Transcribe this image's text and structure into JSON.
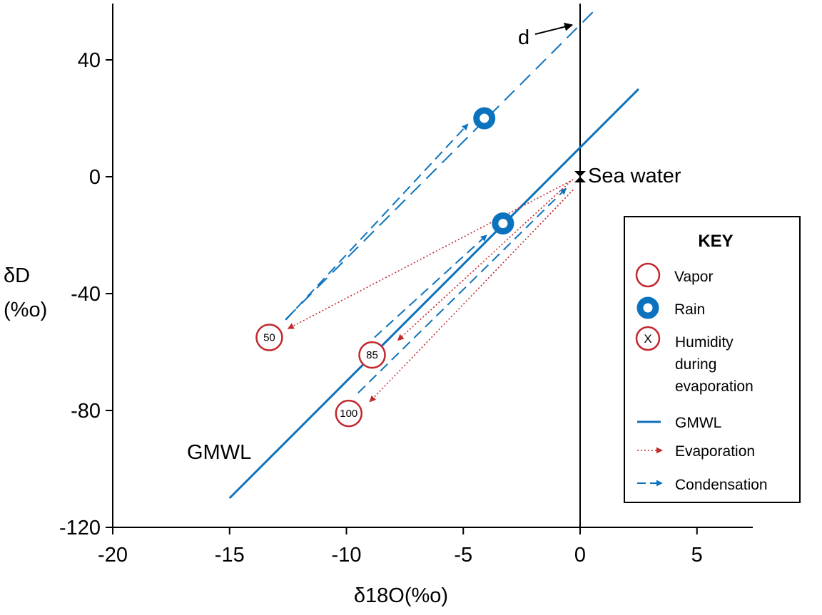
{
  "chart_data": {
    "type": "scatter",
    "title": "",
    "xlabel": "δ18O(%o)",
    "ylabel_line1": "δD",
    "ylabel_line2": "(%o)",
    "xlim": [
      -20,
      7.5
    ],
    "ylim": [
      -120,
      60
    ],
    "xticks": [
      -20,
      -15,
      -10,
      -5,
      0,
      5
    ],
    "xtick_labels": [
      "-20",
      "-15",
      "-10",
      "-5",
      "0",
      "5"
    ],
    "yticks": [
      -120,
      -80,
      -40,
      0,
      40
    ],
    "ytick_labels": [
      "-120",
      "-80",
      "-40",
      "0",
      "40"
    ],
    "gmwl": {
      "label": "GMWL",
      "slope": 8,
      "intercept": 10,
      "x_range": [
        -15,
        2.5
      ]
    },
    "d_line": {
      "label": "d",
      "slope": 8,
      "intercept": 52,
      "x_range": [
        -12.6,
        0.7
      ]
    },
    "sea_water": {
      "label": "Sea water",
      "x": 0,
      "y": 0
    },
    "vapor_points": [
      {
        "humidity": "50",
        "x": -13.3,
        "y": -55
      },
      {
        "humidity": "85",
        "x": -8.9,
        "y": -61
      },
      {
        "humidity": "100",
        "x": -9.9,
        "y": -81
      }
    ],
    "rain_points": [
      {
        "x": -4.1,
        "y": 20
      },
      {
        "x": -3.3,
        "y": -16
      }
    ],
    "evaporation_arrows": [
      {
        "from": [
          -0.3,
          -1
        ],
        "to": [
          -12.5,
          -52
        ]
      },
      {
        "from": [
          -0.4,
          -1.5
        ],
        "to": [
          -7.8,
          -56
        ]
      },
      {
        "from": [
          -0.3,
          -4.5
        ],
        "to": [
          -9.0,
          -77
        ]
      }
    ],
    "condensation_arrows": [
      {
        "from": [
          -12.6,
          -49
        ],
        "to": [
          -4.8,
          18
        ]
      },
      {
        "from": [
          -8.8,
          -55
        ],
        "to": [
          -4.0,
          -20
        ]
      },
      {
        "from": [
          -9.5,
          -74
        ],
        "to": [
          -0.6,
          -4
        ]
      }
    ],
    "colors": {
      "rain_blue": "#0b72bd",
      "vapor_red": "#c1272d",
      "axis": "#000000"
    }
  },
  "key": {
    "title": "KEY",
    "vapor": "Vapor",
    "rain": "Rain",
    "humidity_symbol": "X",
    "humidity_line1": "Humidity",
    "humidity_line2": "during",
    "humidity_line3": "evaporation",
    "gmwl": "GMWL",
    "evaporation": "Evaporation",
    "condensation": "Condensation"
  }
}
